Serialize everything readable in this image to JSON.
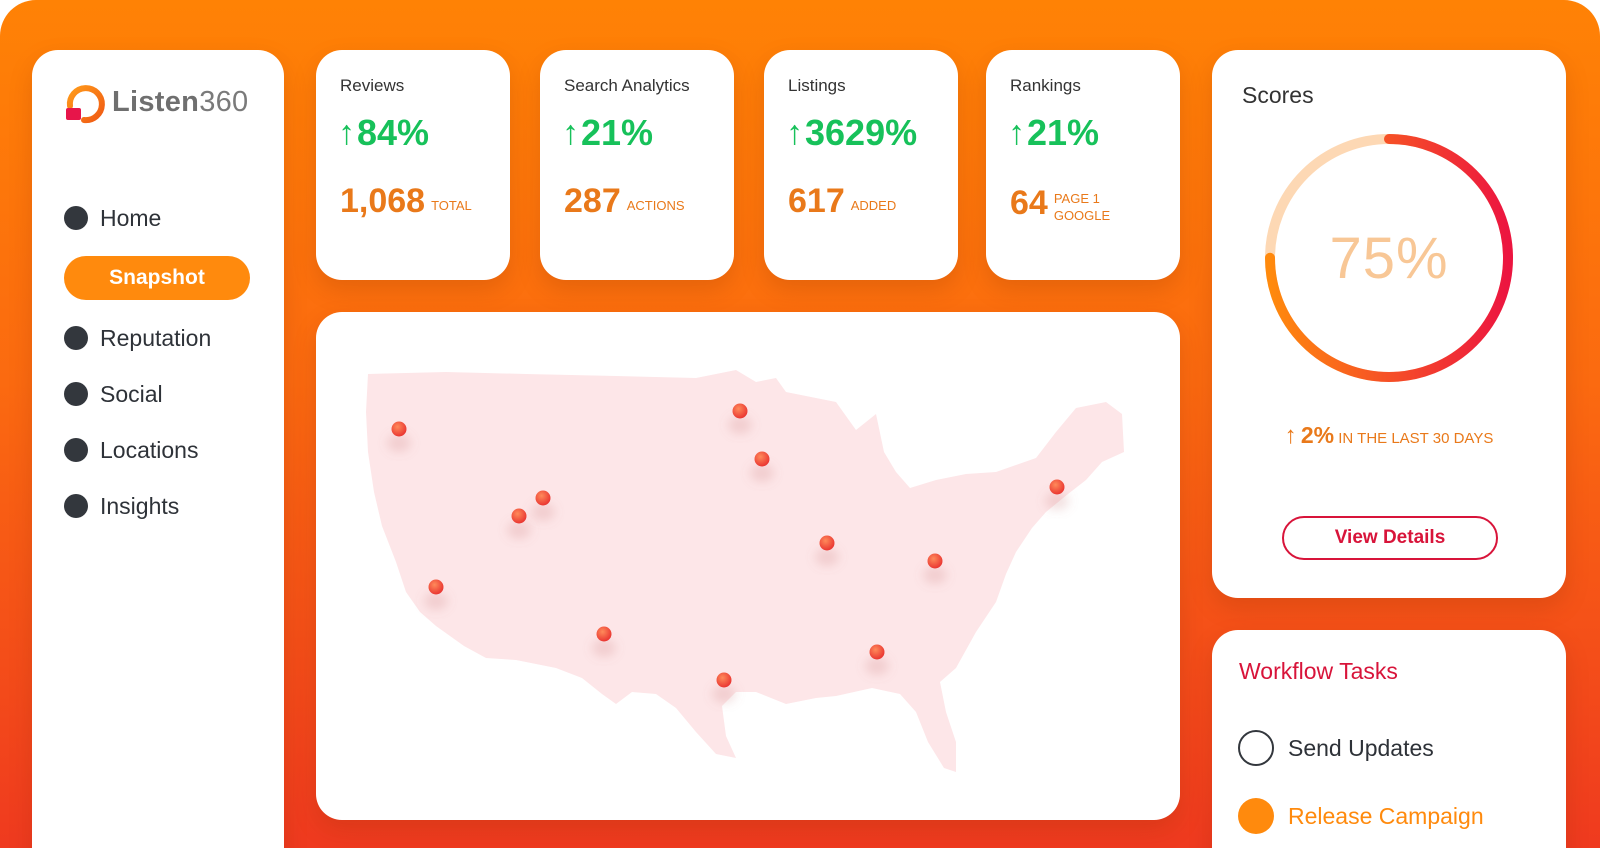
{
  "app": {
    "logo_text_bold": "Listen",
    "logo_text_thin": "360"
  },
  "sidebar": {
    "items": [
      {
        "label": "Home",
        "active": false
      },
      {
        "label": "Snapshot",
        "active": true
      },
      {
        "label": "Reputation",
        "active": false
      },
      {
        "label": "Social",
        "active": false
      },
      {
        "label": "Locations",
        "active": false
      },
      {
        "label": "Insights",
        "active": false
      }
    ]
  },
  "stats": [
    {
      "label": "Reviews",
      "pct": "84%",
      "value": "1,068",
      "unit": "TOTAL"
    },
    {
      "label": "Search Analytics",
      "pct": "21%",
      "value": "287",
      "unit": "ACTIONS"
    },
    {
      "label": "Listings",
      "pct": "3629%",
      "value": "617",
      "unit": "ADDED"
    },
    {
      "label": "Rankings",
      "pct": "21%",
      "value": "64",
      "unit_line1": "PAGE 1",
      "unit_line2": "GOOGLE"
    }
  ],
  "arrow_up": "↑",
  "scores": {
    "title": "Scores",
    "value_text": "75%",
    "value": 0.75,
    "trend_value": "2%",
    "trend_text": "IN THE LAST 30 DAYS",
    "button_label": "View Details"
  },
  "workflow": {
    "title": "Workflow Tasks",
    "tasks": [
      {
        "label": "Send Updates",
        "done": false
      },
      {
        "label": "Release Campaign",
        "done": true
      }
    ]
  },
  "colors": {
    "accent_orange": "#ff8a0d",
    "positive_green": "#17c15a",
    "value_orange": "#e9791a",
    "brand_red": "#d8143a",
    "map_fill": "#fde6e8",
    "pin": "#ef4b3c"
  },
  "icons": [
    "logo-icon",
    "nav-dot-icon",
    "arrow-up-icon",
    "map-pin-icon",
    "task-circle-icon"
  ]
}
